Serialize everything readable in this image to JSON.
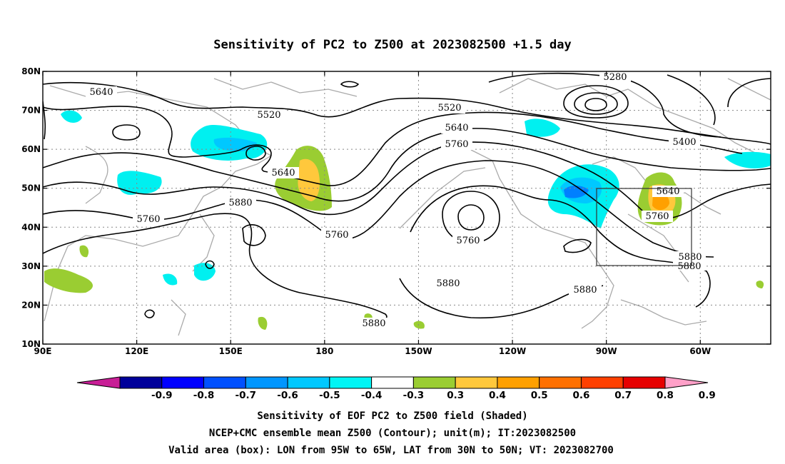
{
  "title": "Sensitivity of PC2 to Z500 at 2023082500 +1.5 day",
  "map": {
    "lon_labels": [
      "90E",
      "120E",
      "150E",
      "180",
      "150W",
      "120W",
      "90W",
      "60W"
    ],
    "lat_labels": [
      "80N",
      "70N",
      "60N",
      "50N",
      "40N",
      "30N",
      "20N",
      "10N"
    ],
    "contour_labels": {
      "c5640_a": "5640",
      "c5520_a": "5520",
      "c5640_b": "5640",
      "c5880_a": "5880",
      "c5760_a": "5760",
      "c5760_b": "5760",
      "c5520_b": "5520",
      "c5640_c": "5640",
      "c5760_c": "5760",
      "c5280": "5280",
      "c5400": "5400",
      "c5760_d": "5760",
      "c5640_d": "5640",
      "c5760_e": "5760",
      "c5880_b": "5880",
      "c5880_c": "5880",
      "c5880_d": "5880",
      "c5880_e": "5880",
      "c5880_f": "5880"
    },
    "colors": {
      "pos_03": "#9acd32",
      "pos_04": "#ffc83c",
      "pos_05": "#ffa000",
      "pos_06": "#ff7000",
      "neg_03": "#00f0f0",
      "neg_04": "#00c8ff",
      "neg_05": "#0080ff",
      "coast": "#aaaaaa"
    }
  },
  "colorbar": {
    "labels": [
      "-0.9",
      "-0.8",
      "-0.7",
      "-0.6",
      "-0.5",
      "-0.4",
      "-0.3",
      "0.3",
      "0.4",
      "0.5",
      "0.6",
      "0.7",
      "0.8",
      "0.9"
    ],
    "colors": [
      "#00009a",
      "#0000ff",
      "#0050ff",
      "#0096ff",
      "#00c8ff",
      "#00f5f5",
      "#ffffff",
      "#9acd32",
      "#ffc83c",
      "#ffa000",
      "#ff7000",
      "#ff4000",
      "#e60000"
    ],
    "low_end_color": "#c81e96",
    "high_end_color": "#ffa0c8"
  },
  "caption": {
    "line1": "Sensitivity of EOF PC2 to Z500 field (Shaded)",
    "line2": "NCEP+CMC ensemble mean Z500 (Contour); unit(m); IT:2023082500",
    "line3": "Valid area (box): LON from 95W to 65W, LAT from 30N to 50N; VT: 2023082700"
  }
}
